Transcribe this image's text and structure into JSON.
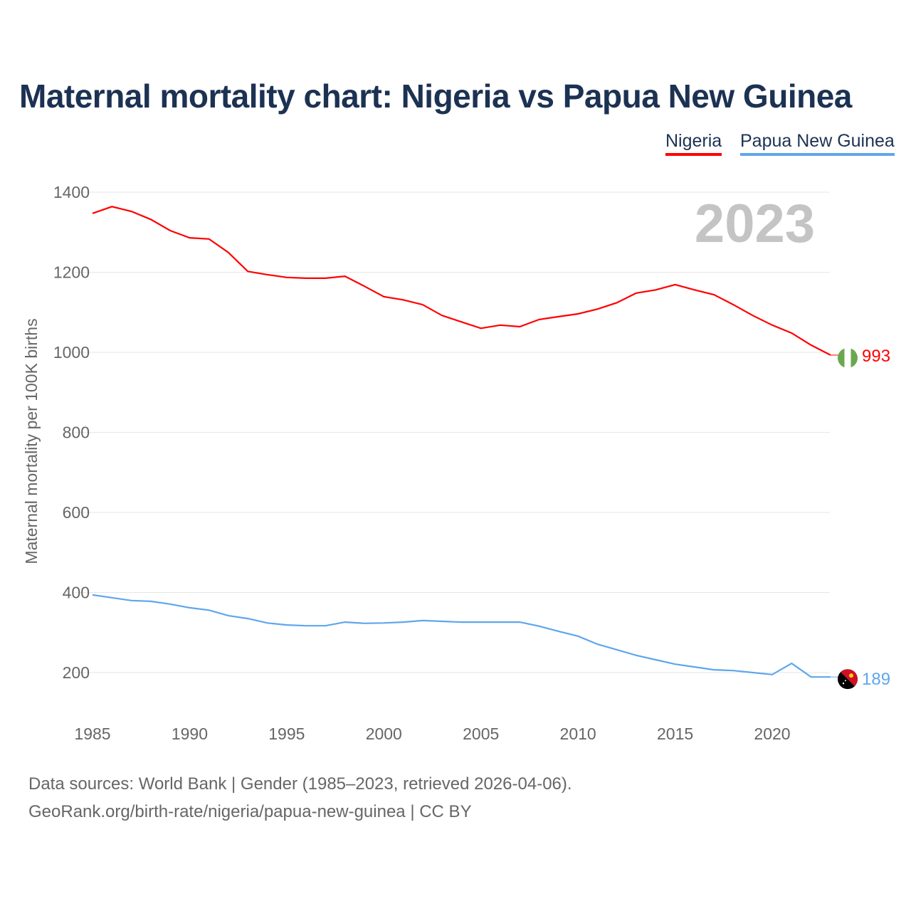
{
  "title": "Maternal mortality chart: Nigeria vs Papua New Guinea",
  "footer": {
    "line1": "Data sources: World Bank | Gender (1985–2023, retrieved 2026-04-06).",
    "line2": "GeoRank.org/birth-rate/nigeria/papua-new-guinea | CC BY"
  },
  "chart_data": {
    "type": "line",
    "title": "Maternal mortality chart: Nigeria vs Papua New Guinea",
    "ylabel": "Maternal mortality per 100K births",
    "xlabel": "",
    "year_watermark": "2023",
    "ylim": [
      100,
      1400
    ],
    "xlim": [
      1985,
      2023
    ],
    "yticks": [
      200,
      400,
      600,
      800,
      1000,
      1200,
      1400
    ],
    "xticks": [
      1985,
      1990,
      1995,
      2000,
      2005,
      2010,
      2015,
      2020
    ],
    "legend_position": "top-right",
    "x": [
      1985,
      1986,
      1987,
      1988,
      1989,
      1990,
      1991,
      1992,
      1993,
      1994,
      1995,
      1996,
      1997,
      1998,
      1999,
      2000,
      2001,
      2002,
      2003,
      2004,
      2005,
      2006,
      2007,
      2008,
      2009,
      2010,
      2011,
      2012,
      2013,
      2014,
      2015,
      2016,
      2017,
      2018,
      2019,
      2020,
      2021,
      2022,
      2023
    ],
    "series": [
      {
        "name": "Nigeria",
        "color": "#ff0000",
        "end_label": "993",
        "values": [
          1347,
          1364,
          1352,
          1332,
          1304,
          1286,
          1283,
          1249,
          1202,
          1194,
          1187,
          1185,
          1185,
          1190,
          1165,
          1139,
          1131,
          1119,
          1092,
          1076,
          1060,
          1068,
          1064,
          1082,
          1089,
          1096,
          1108,
          1124,
          1148,
          1156,
          1169,
          1156,
          1144,
          1119,
          1092,
          1068,
          1048,
          1018,
          993
        ]
      },
      {
        "name": "Papua New Guinea",
        "color": "#5fa6ec",
        "end_label": "189",
        "values": [
          394,
          387,
          380,
          378,
          371,
          362,
          356,
          342,
          335,
          324,
          319,
          317,
          317,
          326,
          323,
          324,
          326,
          330,
          328,
          326,
          326,
          326,
          326,
          316,
          303,
          291,
          271,
          257,
          243,
          232,
          221,
          214,
          207,
          205,
          200,
          195,
          223,
          189,
          189
        ]
      }
    ]
  }
}
